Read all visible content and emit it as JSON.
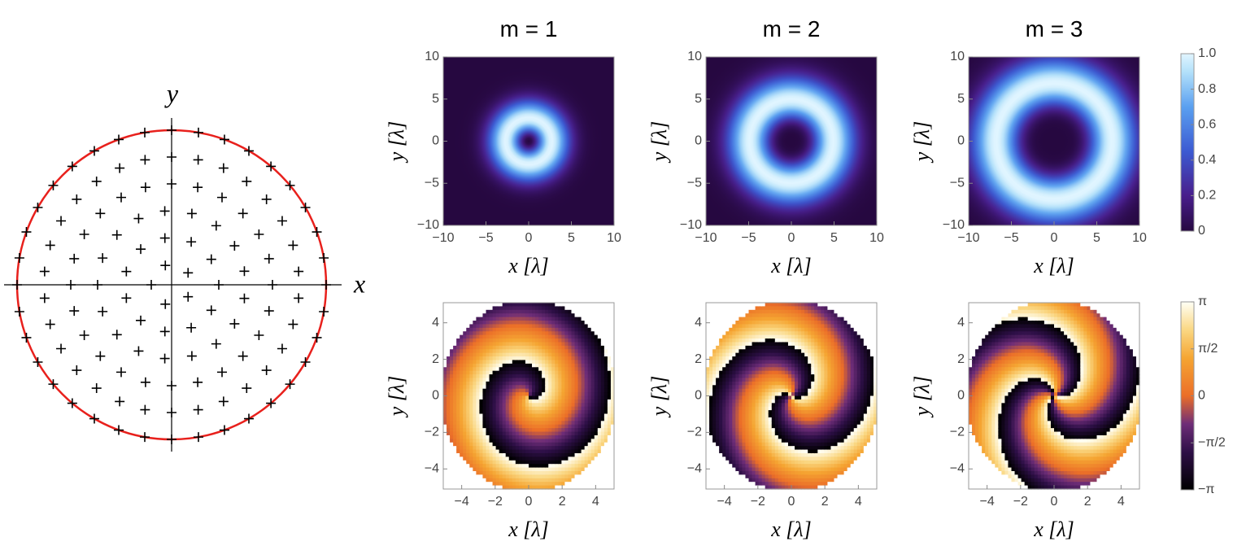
{
  "diagram": {
    "x_label": "x",
    "y_label": "y"
  },
  "panels": [
    {
      "kind": "intensity",
      "title": "m = 1",
      "xlabel": "x [λ]",
      "ylabel": "y [λ]",
      "xlim": [
        -10,
        10
      ],
      "ylim": [
        -10,
        10
      ],
      "xticks": [
        {
          "value": -10,
          "label": "−10"
        },
        {
          "value": -5,
          "label": "−5"
        },
        0,
        5,
        10
      ],
      "yticks": [
        {
          "value": -10,
          "label": "−10"
        },
        {
          "value": -5,
          "label": "−5"
        },
        0,
        5,
        10
      ]
    },
    {
      "kind": "intensity",
      "title": "m = 2",
      "xlabel": "x [λ]",
      "ylabel": "y [λ]",
      "xlim": [
        -10,
        10
      ],
      "ylim": [
        -10,
        10
      ],
      "xticks": [
        {
          "value": -10,
          "label": "−10"
        },
        {
          "value": -5,
          "label": "−5"
        },
        0,
        5,
        10
      ],
      "yticks": [
        {
          "value": -10,
          "label": "−10"
        },
        {
          "value": -5,
          "label": "−5"
        },
        0,
        5,
        10
      ]
    },
    {
      "kind": "intensity",
      "title": "m = 3",
      "xlabel": "x [λ]",
      "ylabel": "y [λ]",
      "xlim": [
        -10,
        10
      ],
      "ylim": [
        -10,
        10
      ],
      "xticks": [
        {
          "value": -10,
          "label": "−10"
        },
        {
          "value": -5,
          "label": "−5"
        },
        0,
        5,
        10
      ],
      "yticks": [
        {
          "value": -10,
          "label": "−10"
        },
        {
          "value": -5,
          "label": "−5"
        },
        0,
        5,
        10
      ]
    },
    {
      "kind": "phase",
      "xlabel": "x [λ]",
      "ylabel": "y [λ]",
      "xlim": [
        -5.1,
        5.1
      ],
      "ylim": [
        -5.1,
        5.1
      ],
      "xticks": [
        {
          "value": -4,
          "label": "−4"
        },
        {
          "value": -2,
          "label": "−2"
        },
        0,
        2,
        4
      ],
      "yticks": [
        {
          "value": -4,
          "label": "−4"
        },
        {
          "value": -2,
          "label": "−2"
        },
        0,
        2,
        4
      ]
    },
    {
      "kind": "phase",
      "xlabel": "x [λ]",
      "ylabel": "y [λ]",
      "xlim": [
        -5.1,
        5.1
      ],
      "ylim": [
        -5.1,
        5.1
      ],
      "xticks": [
        {
          "value": -4,
          "label": "−4"
        },
        {
          "value": -2,
          "label": "−2"
        },
        0,
        2,
        4
      ],
      "yticks": [
        {
          "value": -4,
          "label": "−4"
        },
        {
          "value": -2,
          "label": "−2"
        },
        0,
        2,
        4
      ]
    },
    {
      "kind": "phase",
      "xlabel": "x [λ]",
      "ylabel": "y [λ]",
      "xlim": [
        -5.1,
        5.1
      ],
      "ylim": [
        -5.1,
        5.1
      ],
      "xticks": [
        {
          "value": -4,
          "label": "−4"
        },
        {
          "value": -2,
          "label": "−2"
        },
        0,
        2,
        4
      ],
      "yticks": [
        {
          "value": -4,
          "label": "−4"
        },
        {
          "value": -2,
          "label": "−2"
        },
        0,
        2,
        4
      ]
    }
  ],
  "colorbars": [
    {
      "kind": "intensity",
      "lim": [
        0,
        1
      ],
      "ticks": [
        0,
        0.2,
        0.4,
        0.6,
        0.8,
        {
          "value": 1,
          "label": "1.0"
        }
      ]
    },
    {
      "kind": "phase",
      "lim": [
        -3.14159,
        3.14159
      ],
      "ticks": [
        {
          "value": -3.14159,
          "label": "−π"
        },
        {
          "value": -1.5708,
          "label": "−π/2"
        },
        0,
        {
          "value": 1.5708,
          "label": "π/2"
        },
        {
          "value": 3.14159,
          "label": "π"
        }
      ]
    }
  ]
}
